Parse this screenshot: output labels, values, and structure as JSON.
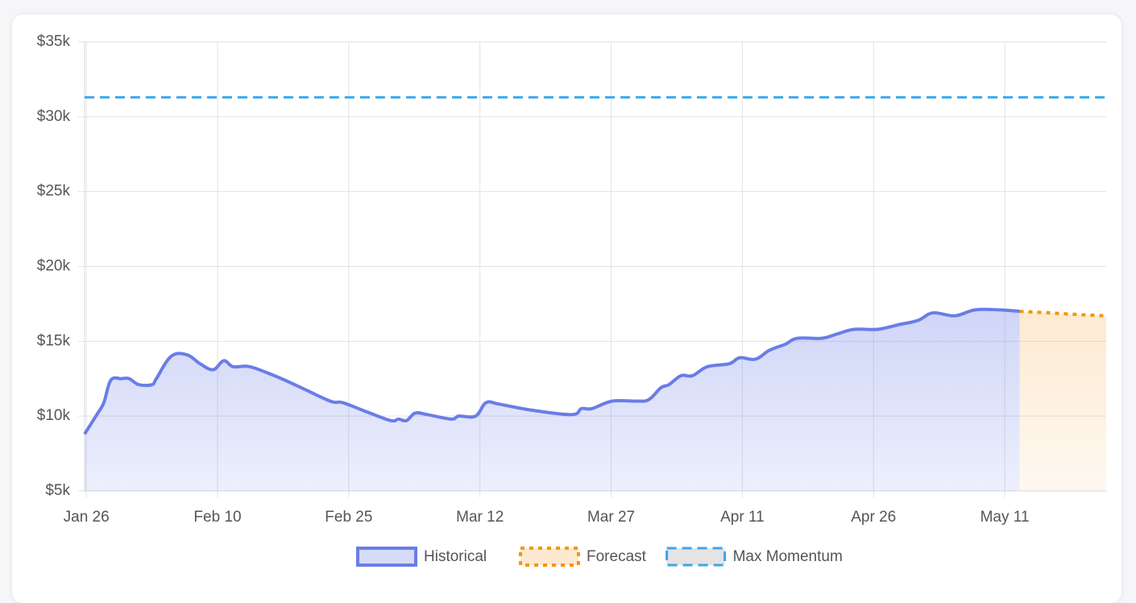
{
  "chart_data": {
    "type": "line",
    "xlim": [
      -0.2,
      116.6
    ],
    "xticks": [
      {
        "value": 0,
        "label": "Jan 26"
      },
      {
        "value": 15,
        "label": "Feb 10"
      },
      {
        "value": 30,
        "label": "Feb 25"
      },
      {
        "value": 45,
        "label": "Mar 12"
      },
      {
        "value": 60,
        "label": "Mar 27"
      },
      {
        "value": 75,
        "label": "Apr 11"
      },
      {
        "value": 90,
        "label": "Apr 26"
      },
      {
        "value": 105,
        "label": "May 11"
      }
    ],
    "ylim": [
      5000,
      35000
    ],
    "yticks": [
      {
        "value": 5000,
        "label": "$5k"
      },
      {
        "value": 10000,
        "label": "$10k"
      },
      {
        "value": 15000,
        "label": "$15k"
      },
      {
        "value": 20000,
        "label": "$20k"
      },
      {
        "value": 25000,
        "label": "$25k"
      },
      {
        "value": 30000,
        "label": "$30k"
      },
      {
        "value": 35000,
        "label": "$35k"
      }
    ],
    "grid": true,
    "legend": "bottom",
    "series": [
      {
        "name": "Historical",
        "color": "#6a7de6",
        "fill": "#d6dbf8",
        "x": [
          -0.2,
          1.2,
          2,
          2.8,
          4,
          4.9,
          6,
          7.5,
          8,
          9.7,
          11.5,
          13,
          14.5,
          15.7,
          16.8,
          18.7,
          21.5,
          24.2,
          27.9,
          29.3,
          32,
          34.8,
          35.7,
          36.6,
          37.6,
          39,
          41.7,
          42.6,
          44.5,
          45.7,
          47.2,
          50.9,
          55.5,
          56.6,
          57.8,
          60.1,
          62.9,
          64.3,
          65.7,
          66.6,
          68,
          69.3,
          71,
          73.5,
          74.7,
          76.5,
          78.1,
          79.9,
          81.3,
          84.1,
          85.9,
          87.8,
          90.5,
          92.8,
          95.1,
          96.8,
          99.3,
          101.6,
          104.4,
          106.7
        ],
        "values": [
          8800,
          10100,
          10900,
          12400,
          12500,
          12500,
          12100,
          12100,
          12500,
          14000,
          14100,
          13500,
          13100,
          13700,
          13300,
          13300,
          12700,
          12000,
          11000,
          10900,
          10300,
          9700,
          9800,
          9700,
          10200,
          10100,
          9800,
          10000,
          10000,
          10900,
          10800,
          10400,
          10100,
          10500,
          10500,
          11000,
          11000,
          11100,
          11900,
          12100,
          12700,
          12700,
          13300,
          13500,
          13900,
          13800,
          14400,
          14800,
          15200,
          15200,
          15500,
          15800,
          15800,
          16100,
          16400,
          16900,
          16700,
          17100,
          17100,
          17000
        ]
      },
      {
        "name": "Forecast",
        "color": "#f5960d",
        "fill": "#fde9cf",
        "x": [
          106.7,
          110,
          113,
          116.6
        ],
        "values": [
          17000,
          16900,
          16800,
          16700
        ]
      },
      {
        "name": "Max Momentum",
        "color": "#3ba5f0",
        "fill": "#e4e4e4",
        "x": [
          -0.2,
          116.6
        ],
        "values": [
          31300,
          31300
        ]
      }
    ]
  }
}
